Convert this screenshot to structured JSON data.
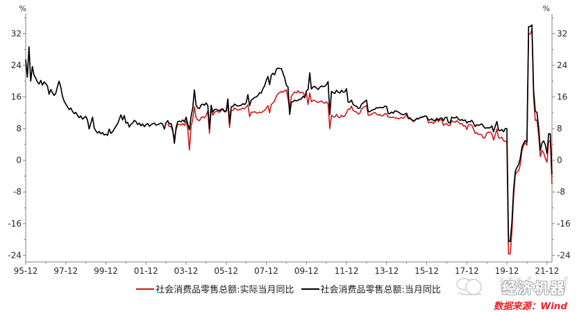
{
  "chart": {
    "unit_left": "%",
    "unit_right": "%",
    "legend": [
      {
        "label": "社会消费品零售总额:实际当月同比",
        "color": "#cc1616"
      },
      {
        "label": "社会消费品零售总额:当月同比",
        "color": "#000000"
      }
    ]
  },
  "chart_data": {
    "type": "line",
    "grid": false,
    "legend_position": "bottom",
    "x_unit": "monthly",
    "x_start": "1995-12",
    "x_end": "2022-03",
    "x_tick_labels": [
      "95-12",
      "97-12",
      "99-12",
      "01-12",
      "03-12",
      "05-12",
      "07-12",
      "09-12",
      "11-12",
      "13-12",
      "15-12",
      "17-12",
      "19-12",
      "21-12"
    ],
    "y_major_ticks": [
      32,
      24,
      16,
      8,
      0,
      -8,
      -16,
      -24
    ],
    "y_minor_step": 4,
    "ylim": [
      -25.7,
      37.0
    ],
    "series": [
      {
        "name": "社会消费品零售总额:实际当月同比",
        "color": "#cc1616",
        "start": "2003-01",
        "values": [
          9.2,
          8.5,
          8.6,
          7.3,
          5.5,
          7.8,
          9.0,
          9.1,
          8.9,
          9.3,
          8.8,
          9.9,
          7.9,
          2.6,
          8.5,
          10.5,
          13.5,
          10.8,
          10.2,
          10.0,
          10.8,
          11.0,
          10.7,
          11.3,
          12.5,
          6.8,
          12.9,
          11.4,
          12.1,
          12.4,
          12.3,
          12.1,
          12.6,
          12.8,
          12.2,
          12.3,
          14.3,
          8.3,
          12.5,
          12.6,
          13.2,
          12.9,
          12.7,
          12.8,
          12.9,
          13.2,
          13.0,
          13.5,
          14.0,
          11.0,
          12.2,
          12.1,
          12.3,
          12.0,
          11.9,
          12.2,
          12.0,
          12.4,
          12.6,
          13.2,
          13.8,
          12.0,
          14.1,
          14.5,
          15.0,
          16.2,
          16.8,
          17.1,
          17.4,
          17.2,
          17.6,
          17.8,
          15.5,
          12.6,
          16.2,
          16.8,
          17.3,
          17.0,
          17.6,
          17.0,
          17.2,
          17.1,
          16.3,
          17.0,
          14.1,
          17.0,
          14.8,
          15.2,
          15.1,
          14.8,
          14.6,
          14.8,
          15.0,
          14.6,
          14.4,
          14.8,
          14.2,
          8.0,
          11.4,
          11.0,
          10.9,
          11.6,
          10.9,
          10.8,
          11.4,
          11.0,
          11.2,
          12.0,
          12.9,
          12.9,
          13.7,
          12.6,
          12.3,
          12.2,
          11.7,
          11.9,
          13.0,
          13.3,
          13.6,
          13.8,
          11.4,
          11.4,
          11.7,
          11.9,
          12.1,
          11.7,
          11.4,
          11.6,
          11.2,
          11.3,
          11.8,
          11.7,
          10.9,
          10.9,
          10.8,
          10.9,
          10.7,
          10.7,
          10.5,
          10.6,
          10.8,
          10.6,
          11.0,
          11.5,
          10.5,
          10.5,
          10.4,
          9.7,
          10.2,
          10.5,
          10.4,
          10.8,
          10.8,
          11.0,
          11.2,
          11.1,
          9.5,
          9.5,
          9.7,
          9.3,
          9.7,
          10.3,
          9.8,
          10.2,
          10.3,
          8.8,
          9.2,
          9.2,
          8.8,
          8.8,
          10.0,
          9.7,
          9.6,
          10.0,
          9.6,
          9.2,
          9.3,
          8.6,
          8.8,
          7.8,
          9.0,
          9.0,
          8.9,
          7.9,
          6.8,
          7.0,
          6.5,
          6.6,
          6.4,
          5.6,
          5.8,
          6.9,
          7.1,
          7.1,
          6.7,
          5.1,
          6.4,
          7.9,
          5.7,
          5.6,
          5.8,
          4.9,
          4.9,
          4.5,
          -23.7,
          -23.7,
          -18.1,
          -9.1,
          -3.7,
          -2.9,
          -2.7,
          -1.1,
          2.4,
          3.8,
          4.4,
          3.8,
          31.9,
          31.9,
          33.0,
          15.8,
          10.1,
          10.2,
          6.4,
          0.9,
          2.5,
          1.9,
          0.5,
          -0.5,
          4.9,
          4.9,
          -6.0
        ]
      },
      {
        "name": "社会消费品零售总额:当月同比",
        "color": "#000000",
        "start": "1995-12",
        "values": [
          25.5,
          21.0,
          28.7,
          20.0,
          23.7,
          21.5,
          20.8,
          19.8,
          19.3,
          20.2,
          19.0,
          19.8,
          19.4,
          18.8,
          16.7,
          17.9,
          17.1,
          16.4,
          16.9,
          18.6,
          20.0,
          18.5,
          16.2,
          15.0,
          14.2,
          13.5,
          12.8,
          13.2,
          12.4,
          11.8,
          12.1,
          11.4,
          10.8,
          11.2,
          10.4,
          10.8,
          11.1,
          10.2,
          7.9,
          9.4,
          10.9,
          8.2,
          7.4,
          6.9,
          7.3,
          6.7,
          7.0,
          6.4,
          6.6,
          6.3,
          7.9,
          6.8,
          7.2,
          7.9,
          8.6,
          9.2,
          10.4,
          11.5,
          10.2,
          11.3,
          9.4,
          9.6,
          8.4,
          9.1,
          9.4,
          10.1,
          9.8,
          9.0,
          9.4,
          8.7,
          9.2,
          8.5,
          9.0,
          9.3,
          8.6,
          9.0,
          9.2,
          9.4,
          8.9,
          9.0,
          9.2,
          9.4,
          9.1,
          7.9,
          9.5,
          10.0,
          9.2,
          9.3,
          7.7,
          4.3,
          8.3,
          9.8,
          9.9,
          9.7,
          10.2,
          9.7,
          10.9,
          9.2,
          7.7,
          11.1,
          13.2,
          17.8,
          13.9,
          13.2,
          13.1,
          14.0,
          14.2,
          13.9,
          14.5,
          13.8,
          8.0,
          13.9,
          12.2,
          12.8,
          12.9,
          12.7,
          12.5,
          12.9,
          13.0,
          12.4,
          12.5,
          15.5,
          9.4,
          13.5,
          13.6,
          14.2,
          13.9,
          13.7,
          13.8,
          13.9,
          14.3,
          14.1,
          14.6,
          16.6,
          13.8,
          15.3,
          15.5,
          15.9,
          16.0,
          16.4,
          17.1,
          17.0,
          18.1,
          18.8,
          20.2,
          21.2,
          19.1,
          21.5,
          22.0,
          21.6,
          23.0,
          23.3,
          23.2,
          23.2,
          22.0,
          20.8,
          19.0,
          18.5,
          11.6,
          14.7,
          14.8,
          15.2,
          15.0,
          15.2,
          15.4,
          15.5,
          16.2,
          15.8,
          17.5,
          17.9,
          22.1,
          18.0,
          18.5,
          18.7,
          18.3,
          17.9,
          18.4,
          18.8,
          18.6,
          18.7,
          19.1,
          19.9,
          11.6,
          17.4,
          17.1,
          16.9,
          17.7,
          17.2,
          17.0,
          17.7,
          17.2,
          17.3,
          18.1,
          14.7,
          14.7,
          15.2,
          14.1,
          13.8,
          13.7,
          13.1,
          13.2,
          14.2,
          14.5,
          14.9,
          15.2,
          12.3,
          12.3,
          12.6,
          12.8,
          12.9,
          13.3,
          13.2,
          13.4,
          13.3,
          13.3,
          13.7,
          13.6,
          11.8,
          11.8,
          12.2,
          11.9,
          12.5,
          12.4,
          12.2,
          11.9,
          11.6,
          11.5,
          11.7,
          11.9,
          10.7,
          10.7,
          10.2,
          10.0,
          10.1,
          10.6,
          10.5,
          10.8,
          10.9,
          11.0,
          11.2,
          11.1,
          10.2,
          10.2,
          10.5,
          10.1,
          10.0,
          10.6,
          10.2,
          10.6,
          10.7,
          10.0,
          10.8,
          10.9,
          9.5,
          9.5,
          10.9,
          10.7,
          10.7,
          11.0,
          10.4,
          10.1,
          10.3,
          10.0,
          10.2,
          9.4,
          9.8,
          9.7,
          10.1,
          9.4,
          8.5,
          9.0,
          8.8,
          9.0,
          9.2,
          8.6,
          8.1,
          8.2,
          8.2,
          8.2,
          8.7,
          7.2,
          8.6,
          9.8,
          7.6,
          7.5,
          7.8,
          7.2,
          8.0,
          8.0,
          -20.5,
          -20.5,
          -15.8,
          -7.5,
          -2.8,
          -1.8,
          -1.1,
          0.5,
          3.3,
          4.3,
          5.0,
          4.6,
          33.8,
          33.8,
          34.2,
          17.7,
          12.4,
          12.1,
          8.5,
          2.5,
          4.4,
          4.9,
          3.9,
          1.7,
          6.7,
          6.7,
          -3.5
        ]
      }
    ]
  },
  "watermark": {
    "brand": "经济机器",
    "wind": "Wind"
  },
  "footer": {
    "source_label": "数据来源：Wind"
  }
}
